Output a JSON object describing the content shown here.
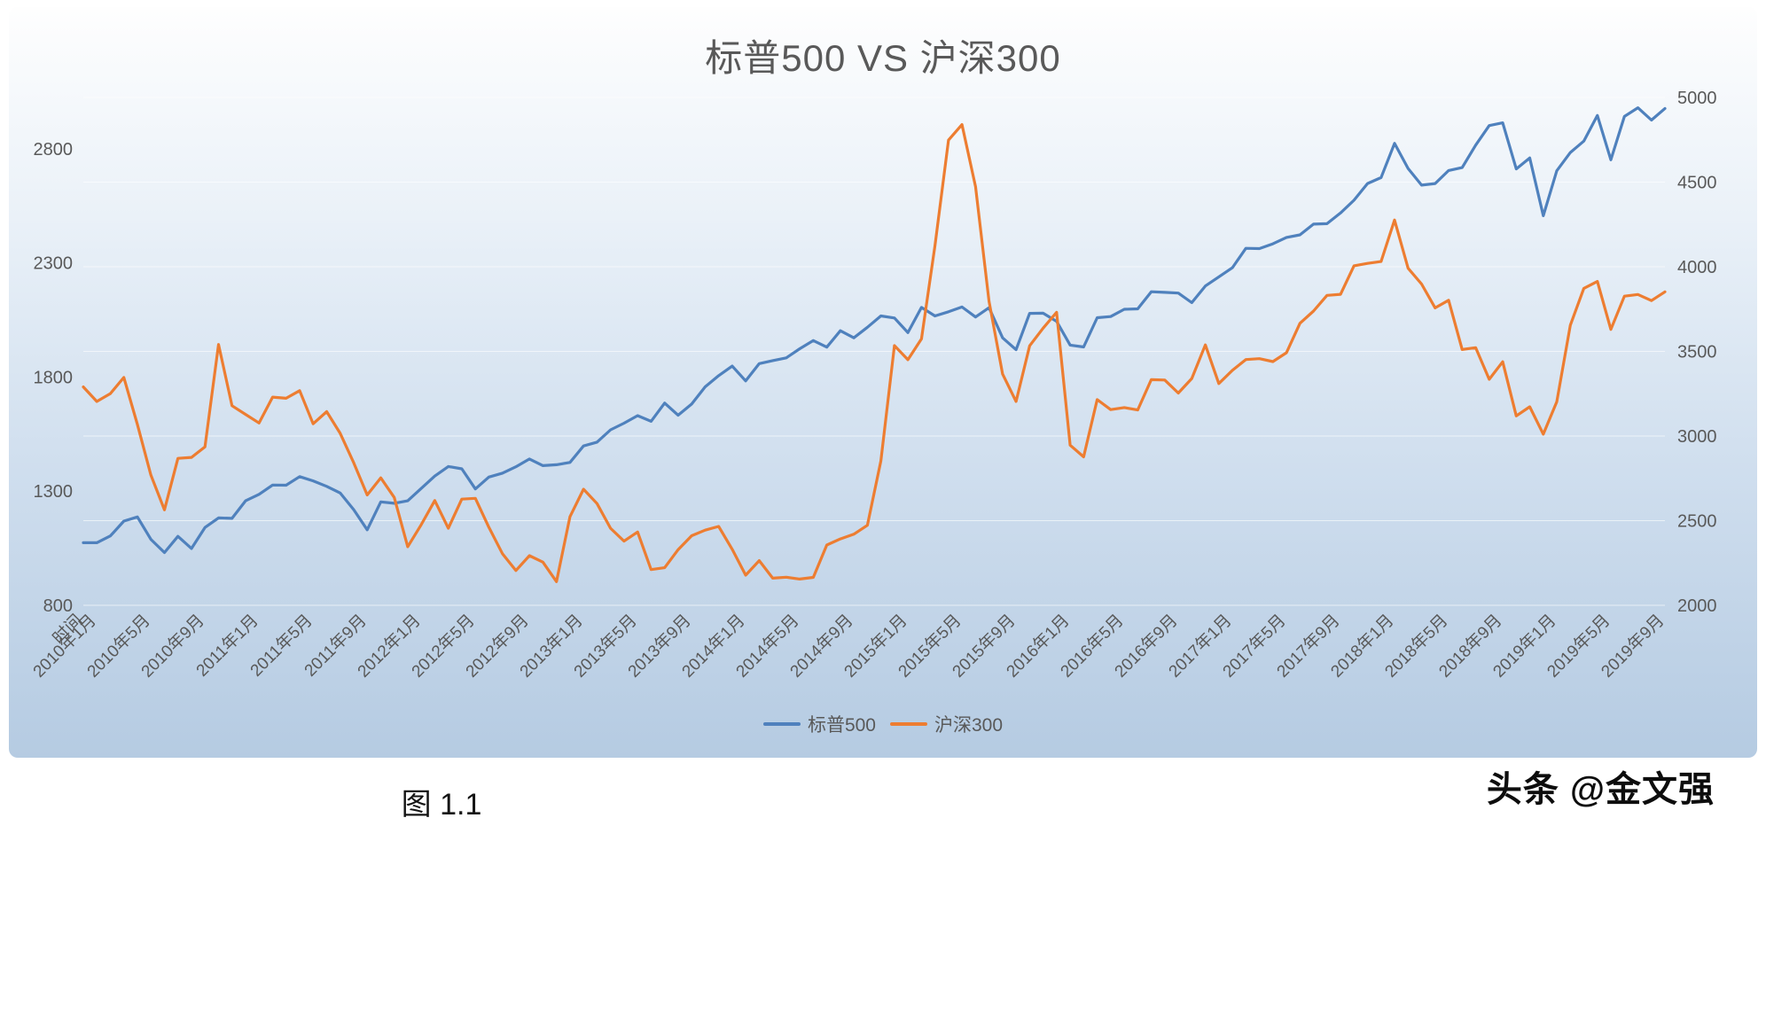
{
  "title": "标普500 VS 沪深300",
  "caption": "图 1.1",
  "watermark": "头条 @金文强",
  "colors": {
    "sp500": "#4F81BD",
    "csi300": "#ED7D31",
    "title_text": "#595959",
    "axis_text": "#595959",
    "gridline": "#FFFFFF",
    "plot_background_top": "#FEFEFE",
    "plot_background_bottom": "#B5CBE2"
  },
  "legend": [
    {
      "label": "标普500",
      "color": "#4F81BD"
    },
    {
      "label": "沪深300",
      "color": "#ED7D31"
    }
  ],
  "chart_data": {
    "type": "line",
    "title": "标普500 VS 沪深300",
    "grid": true,
    "legend_position": "bottom",
    "n_points": 118,
    "x_tick_labels": [
      "时间",
      "2010年1月",
      "2010年5月",
      "2010年9月",
      "2011年1月",
      "2011年5月",
      "2011年9月",
      "2012年1月",
      "2012年5月",
      "2012年9月",
      "2013年1月",
      "2013年5月",
      "2013年9月",
      "2014年1月",
      "2014年5月",
      "2014年9月",
      "2015年1月",
      "2015年5月",
      "2015年9月",
      "2016年1月",
      "2016年5月",
      "2016年9月",
      "2017年1月",
      "2017年5月",
      "2017年9月",
      "2018年1月",
      "2018年5月",
      "2018年9月",
      "2019年1月",
      "2019年5月",
      "2019年9月"
    ],
    "x_tick_indices": [
      0,
      1,
      5,
      9,
      13,
      17,
      21,
      25,
      29,
      33,
      37,
      41,
      45,
      49,
      53,
      57,
      61,
      65,
      69,
      73,
      77,
      81,
      85,
      89,
      93,
      97,
      101,
      105,
      109,
      113,
      117
    ],
    "left_axis": {
      "min": 800,
      "max": 3025,
      "ticks": [
        800,
        1300,
        1800,
        2300,
        2800
      ]
    },
    "right_axis": {
      "min": 2000,
      "max": 5000,
      "ticks": [
        2000,
        2500,
        3000,
        3500,
        4000,
        4500,
        5000
      ]
    },
    "series": [
      {
        "name": "标普500",
        "axis": "left",
        "color": "#4F81BD",
        "values": [
          1074,
          1074,
          1104,
          1169,
          1187,
          1089,
          1031,
          1102,
          1049,
          1141,
          1183,
          1181,
          1258,
          1286,
          1327,
          1326,
          1364,
          1345,
          1321,
          1292,
          1219,
          1131,
          1253,
          1247,
          1258,
          1312,
          1366,
          1408,
          1398,
          1310,
          1362,
          1379,
          1407,
          1441,
          1412,
          1416,
          1426,
          1498,
          1515,
          1569,
          1598,
          1631,
          1606,
          1686,
          1633,
          1682,
          1757,
          1806,
          1848,
          1783,
          1859,
          1872,
          1884,
          1924,
          1960,
          1931,
          2003,
          1972,
          2018,
          2068,
          2059,
          1995,
          2105,
          2068,
          2086,
          2107,
          2063,
          2104,
          1972,
          1920,
          2079,
          2080,
          2044,
          1940,
          1932,
          2060,
          2065,
          2097,
          2099,
          2174,
          2171,
          2168,
          2126,
          2199,
          2239,
          2279,
          2364,
          2363,
          2384,
          2412,
          2423,
          2470,
          2472,
          2519,
          2575,
          2648,
          2674,
          2824,
          2714,
          2641,
          2648,
          2705,
          2718,
          2816,
          2902,
          2914,
          2712,
          2760,
          2507,
          2704,
          2784,
          2834,
          2946,
          2752,
          2942,
          2980,
          2926,
          2977
        ]
      },
      {
        "name": "沪深300",
        "axis": "right",
        "color": "#ED7D31",
        "values": [
          3290,
          3204,
          3251,
          3346,
          3068,
          2769,
          2564,
          2868,
          2874,
          2936,
          3541,
          3179,
          3128,
          3077,
          3230,
          3223,
          3268,
          3072,
          3144,
          3016,
          2842,
          2652,
          2753,
          2637,
          2346,
          2477,
          2619,
          2455,
          2627,
          2632,
          2461,
          2305,
          2205,
          2293,
          2255,
          2140,
          2523,
          2686,
          2601,
          2455,
          2379,
          2433,
          2211,
          2222,
          2329,
          2411,
          2444,
          2466,
          2331,
          2178,
          2264,
          2160,
          2166,
          2155,
          2165,
          2356,
          2392,
          2420,
          2473,
          2853,
          3534,
          3451,
          3574,
          4124,
          4748,
          4840,
          4473,
          3796,
          3366,
          3204,
          3533,
          3637,
          3731,
          2946,
          2877,
          3215,
          3156,
          3168,
          3154,
          3333,
          3331,
          3254,
          3340,
          3538,
          3310,
          3388,
          3452,
          3457,
          3440,
          3492,
          3666,
          3738,
          3831,
          3837,
          4006,
          4020,
          4031,
          4276,
          3991,
          3898,
          3757,
          3802,
          3511,
          3522,
          3335,
          3439,
          3119,
          3173,
          3011,
          3202,
          3655,
          3872,
          3913,
          3630,
          3826,
          3836,
          3800,
          3852
        ]
      }
    ]
  }
}
